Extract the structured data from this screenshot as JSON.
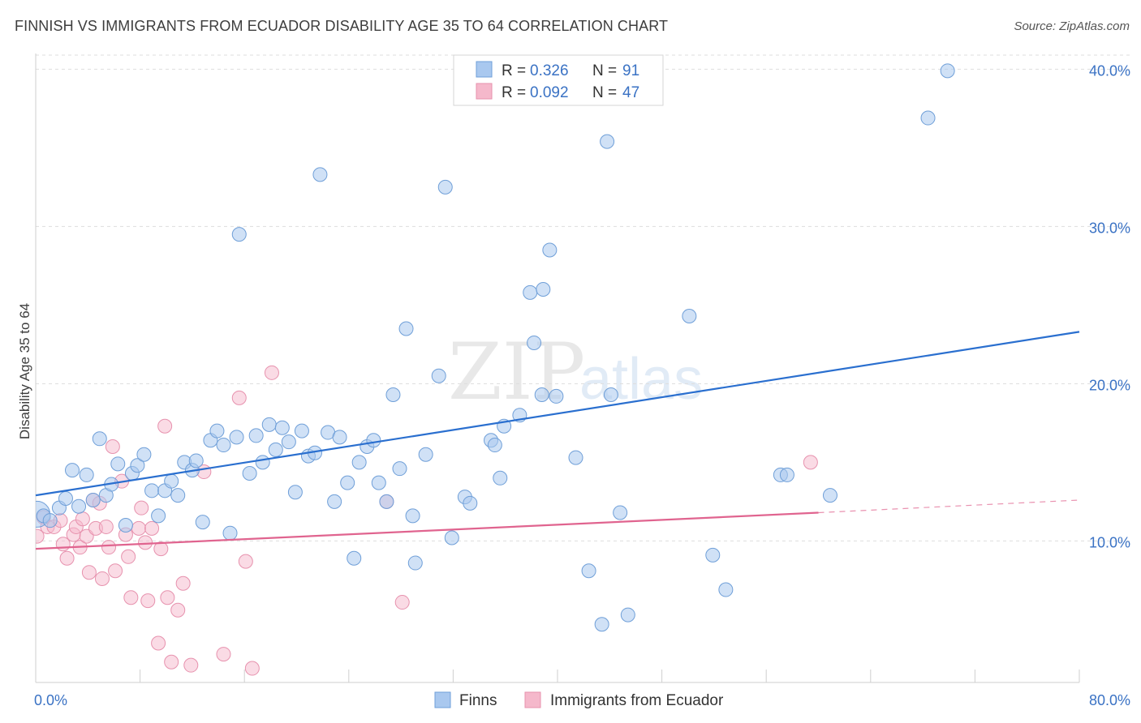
{
  "header": {
    "title": "FINNISH VS IMMIGRANTS FROM ECUADOR DISABILITY AGE 35 TO 64 CORRELATION CHART",
    "source": "Source: ZipAtlas.com"
  },
  "colors": {
    "finns_fill": "#a9c8ef",
    "finns_stroke": "#6f9fd8",
    "finns_line": "#2a6fcf",
    "ecuador_fill": "#f5b8cb",
    "ecuador_stroke": "#e792ae",
    "ecuador_line": "#e0648f",
    "grid": "#dddddd",
    "value_blue": "#3a72c4"
  },
  "legend": {
    "r_label": "R =",
    "n_label": "N =",
    "finns": {
      "r": "0.326",
      "n": "91"
    },
    "ecuador": {
      "r": "0.092",
      "n": "47"
    }
  },
  "watermark": {
    "zip": "ZIP",
    "atlas": "atlas"
  },
  "chart_data": {
    "type": "scatter",
    "xlabel": "",
    "ylabel": "Disability Age 35 to 64",
    "xlim": [
      0,
      80
    ],
    "ylim": [
      1,
      41
    ],
    "x_tick_labels": [
      {
        "value": 0,
        "label": "0.0%"
      },
      {
        "value": 80,
        "label": "80.0%"
      }
    ],
    "y_ticks": [
      {
        "value": 10,
        "label": "10.0%"
      },
      {
        "value": 20,
        "label": "20.0%"
      },
      {
        "value": 30,
        "label": "30.0%"
      },
      {
        "value": 40,
        "label": "40.0%"
      }
    ],
    "grid": true,
    "legend_position": "top-center",
    "series": [
      {
        "name": "Finns",
        "trend": {
          "x": [
            0,
            80
          ],
          "y": [
            12.9,
            23.3
          ]
        },
        "points": [
          [
            0.1,
            11.7
          ],
          [
            0.6,
            11.6
          ],
          [
            1.1,
            11.3
          ],
          [
            1.8,
            12.1
          ],
          [
            2.3,
            12.7
          ],
          [
            2.8,
            14.5
          ],
          [
            3.3,
            12.2
          ],
          [
            3.9,
            14.2
          ],
          [
            4.4,
            12.6
          ],
          [
            4.9,
            16.5
          ],
          [
            5.4,
            12.9
          ],
          [
            5.8,
            13.6
          ],
          [
            6.3,
            14.9
          ],
          [
            6.9,
            11.0
          ],
          [
            7.4,
            14.3
          ],
          [
            7.8,
            14.8
          ],
          [
            8.3,
            15.5
          ],
          [
            8.9,
            13.2
          ],
          [
            9.4,
            11.6
          ],
          [
            9.9,
            13.2
          ],
          [
            10.4,
            13.8
          ],
          [
            10.9,
            12.9
          ],
          [
            11.4,
            15.0
          ],
          [
            12.0,
            14.5
          ],
          [
            12.3,
            15.1
          ],
          [
            12.8,
            11.2
          ],
          [
            13.4,
            16.4
          ],
          [
            13.9,
            17.0
          ],
          [
            14.4,
            16.1
          ],
          [
            14.9,
            10.5
          ],
          [
            15.4,
            16.6
          ],
          [
            15.6,
            29.5
          ],
          [
            16.4,
            14.3
          ],
          [
            16.9,
            16.7
          ],
          [
            17.4,
            15.0
          ],
          [
            17.9,
            17.4
          ],
          [
            18.4,
            15.8
          ],
          [
            18.9,
            17.2
          ],
          [
            19.4,
            16.3
          ],
          [
            19.9,
            13.1
          ],
          [
            20.4,
            17.0
          ],
          [
            20.9,
            15.4
          ],
          [
            21.4,
            15.6
          ],
          [
            21.8,
            33.3
          ],
          [
            22.4,
            16.9
          ],
          [
            22.9,
            12.5
          ],
          [
            23.3,
            16.6
          ],
          [
            23.9,
            13.7
          ],
          [
            24.4,
            8.9
          ],
          [
            24.8,
            15.0
          ],
          [
            25.4,
            16.0
          ],
          [
            25.9,
            16.4
          ],
          [
            26.3,
            13.7
          ],
          [
            26.9,
            12.5
          ],
          [
            27.4,
            19.3
          ],
          [
            27.9,
            14.6
          ],
          [
            28.4,
            23.5
          ],
          [
            28.9,
            11.6
          ],
          [
            29.1,
            8.6
          ],
          [
            29.9,
            15.5
          ],
          [
            30.9,
            20.5
          ],
          [
            31.9,
            10.2
          ],
          [
            31.4,
            32.5
          ],
          [
            32.9,
            12.8
          ],
          [
            33.3,
            12.4
          ],
          [
            34.9,
            16.4
          ],
          [
            35.2,
            16.1
          ],
          [
            35.9,
            17.3
          ],
          [
            35.6,
            14.0
          ],
          [
            37.1,
            18.0
          ],
          [
            37.9,
            25.8
          ],
          [
            38.2,
            22.6
          ],
          [
            38.8,
            19.3
          ],
          [
            38.9,
            26.0
          ],
          [
            39.4,
            28.5
          ],
          [
            39.9,
            19.2
          ],
          [
            41.4,
            15.3
          ],
          [
            42.4,
            8.1
          ],
          [
            43.4,
            4.7
          ],
          [
            43.8,
            35.4
          ],
          [
            44.1,
            19.3
          ],
          [
            44.8,
            11.8
          ],
          [
            45.4,
            5.3
          ],
          [
            50.1,
            24.3
          ],
          [
            51.9,
            9.1
          ],
          [
            52.9,
            6.9
          ],
          [
            57.1,
            14.2
          ],
          [
            57.6,
            14.2
          ],
          [
            60.9,
            12.9
          ],
          [
            68.4,
            36.9
          ],
          [
            69.9,
            39.9
          ]
        ]
      },
      {
        "name": "Immigrants from Ecuador",
        "trend": {
          "x": [
            0,
            60
          ],
          "y": [
            9.5,
            11.8
          ]
        },
        "trend_ext": {
          "x": [
            60,
            80
          ],
          "y": [
            11.8,
            12.6
          ]
        },
        "points": [
          [
            0.1,
            10.3
          ],
          [
            0.6,
            11.5
          ],
          [
            0.9,
            10.9
          ],
          [
            1.4,
            10.9
          ],
          [
            1.9,
            11.3
          ],
          [
            2.1,
            9.8
          ],
          [
            2.4,
            8.9
          ],
          [
            2.9,
            10.4
          ],
          [
            3.1,
            10.9
          ],
          [
            3.4,
            9.6
          ],
          [
            3.6,
            11.4
          ],
          [
            3.9,
            10.3
          ],
          [
            4.1,
            8.0
          ],
          [
            4.4,
            12.6
          ],
          [
            4.6,
            10.8
          ],
          [
            4.9,
            12.4
          ],
          [
            5.1,
            7.6
          ],
          [
            5.4,
            10.9
          ],
          [
            5.6,
            9.6
          ],
          [
            5.9,
            16.0
          ],
          [
            6.1,
            8.1
          ],
          [
            6.6,
            13.8
          ],
          [
            6.9,
            10.4
          ],
          [
            7.1,
            9.0
          ],
          [
            7.3,
            6.4
          ],
          [
            7.9,
            10.8
          ],
          [
            8.1,
            12.1
          ],
          [
            8.4,
            9.9
          ],
          [
            8.6,
            6.2
          ],
          [
            8.9,
            10.8
          ],
          [
            9.4,
            3.5
          ],
          [
            9.6,
            9.5
          ],
          [
            9.9,
            17.3
          ],
          [
            10.1,
            6.4
          ],
          [
            10.4,
            2.3
          ],
          [
            10.9,
            5.6
          ],
          [
            11.3,
            7.3
          ],
          [
            11.9,
            2.1
          ],
          [
            12.9,
            14.4
          ],
          [
            14.4,
            2.8
          ],
          [
            15.6,
            19.1
          ],
          [
            16.1,
            8.7
          ],
          [
            16.6,
            1.9
          ],
          [
            18.1,
            20.7
          ],
          [
            26.9,
            12.5
          ],
          [
            28.1,
            6.1
          ],
          [
            59.4,
            15.0
          ]
        ]
      }
    ]
  }
}
